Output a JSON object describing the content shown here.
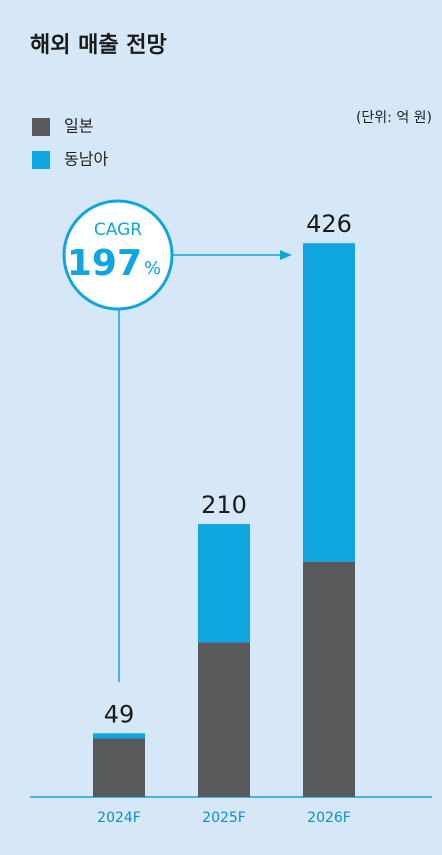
{
  "chart_data": {
    "type": "stacked_bar",
    "title": "해외 매출 전망",
    "unit_label": "(단위: 억 원)",
    "categories": [
      "2024F",
      "2025F",
      "2026F"
    ],
    "series": [
      {
        "name": "일본",
        "color": "#58595b",
        "values": [
          45,
          119,
          181
        ]
      },
      {
        "name": "동남아",
        "color": "#0ea5e0",
        "values": [
          4,
          91,
          245
        ]
      }
    ],
    "totals": [
      49,
      210,
      426
    ],
    "cagr": {
      "label": "CAGR",
      "value": 197,
      "unit": "%"
    },
    "ylim": [
      0,
      450
    ]
  }
}
